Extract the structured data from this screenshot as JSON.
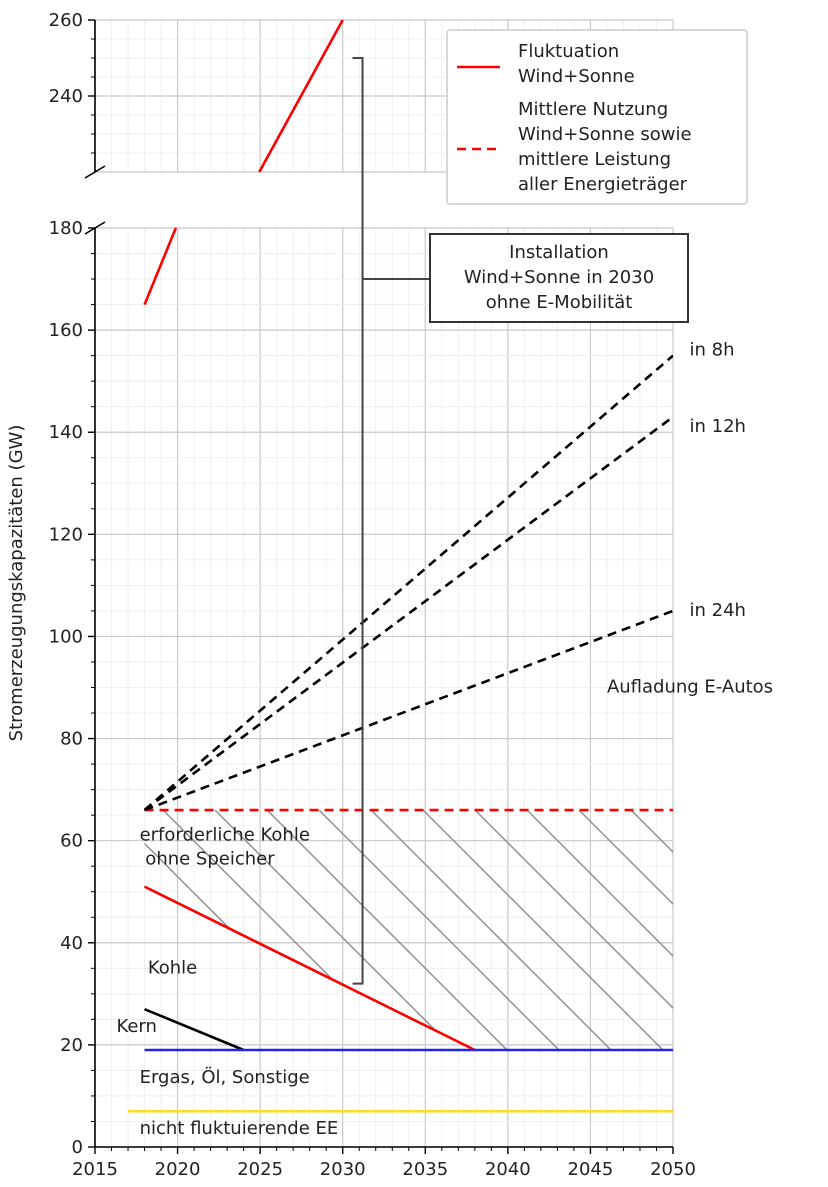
{
  "chart_data": {
    "type": "line",
    "ylabel": "Stromerzeugungskapazitäten (GW)",
    "xlim": [
      2015,
      2050
    ],
    "ylim_lower": [
      0,
      180
    ],
    "ylim_upper": [
      220,
      260
    ],
    "axis_break_between": [
      180,
      220
    ],
    "grid": true,
    "legend_position": "top-right",
    "x_ticks": [
      2015,
      2020,
      2025,
      2030,
      2035,
      2040,
      2045,
      2050
    ],
    "y_ticks": [
      0,
      20,
      40,
      60,
      80,
      100,
      120,
      140,
      160,
      180,
      240,
      260
    ],
    "legend": [
      {
        "label_lines": [
          "Fluktuation",
          "Wind+Sonne"
        ],
        "style": "solid",
        "color": "#ff0000"
      },
      {
        "label_lines": [
          "Mittlere Nutzung",
          "Wind+Sonne sowie",
          "mittlere Leistung",
          "aller Energieträger"
        ],
        "style": "dashed",
        "color": "#ff0000"
      }
    ],
    "series": [
      {
        "id": "fluktuation",
        "name": "Fluktuation Wind+Sonne",
        "color": "#ff0000",
        "style": "solid",
        "x": [
          2018,
          2030.0
        ],
        "y": [
          165,
          260
        ]
      },
      {
        "id": "mittlere-nutzung",
        "name": "Mittlere Nutzung Wind+Sonne sowie mittlere Leistung aller Energieträger",
        "color": "#ff0000",
        "style": "dashed",
        "x": [
          2018,
          2050
        ],
        "y": [
          66,
          66
        ]
      },
      {
        "id": "emob-8h",
        "color": "#000000",
        "style": "dashed",
        "x": [
          2018,
          2050
        ],
        "y": [
          66,
          155
        ]
      },
      {
        "id": "emob-12h",
        "color": "#000000",
        "style": "dashed",
        "x": [
          2018,
          2050
        ],
        "y": [
          66,
          143
        ]
      },
      {
        "id": "emob-24h",
        "color": "#000000",
        "style": "dashed",
        "x": [
          2018,
          2050
        ],
        "y": [
          66,
          105
        ]
      },
      {
        "id": "kohle",
        "color": "#ff0000",
        "style": "solid",
        "x": [
          2018,
          2038
        ],
        "y": [
          51,
          19
        ]
      },
      {
        "id": "kern",
        "color": "#000000",
        "style": "solid",
        "x": [
          2018,
          2024
        ],
        "y": [
          27,
          19
        ]
      },
      {
        "id": "ergas",
        "color": "#2222ee",
        "style": "solid",
        "x": [
          2018,
          2050
        ],
        "y": [
          19,
          19
        ]
      },
      {
        "id": "nicht-fluktuierend",
        "color": "#ffdd22",
        "style": "solid",
        "x": [
          2017,
          2050
        ],
        "y": [
          7,
          7
        ]
      }
    ],
    "annotations": [
      {
        "id": "in-8h",
        "lines": [
          "in 8h"
        ],
        "x": 2051,
        "y": 155
      },
      {
        "id": "in-12h",
        "lines": [
          "in 12h"
        ],
        "x": 2051,
        "y": 140
      },
      {
        "id": "in-24h",
        "lines": [
          "in 24h"
        ],
        "x": 2051,
        "y": 104
      },
      {
        "id": "aufladung",
        "lines": [
          "Aufladung E-Autos"
        ],
        "x": 2046,
        "y": 89
      },
      {
        "id": "erf-kohle",
        "lines": [
          "erforderliche Kohle",
          " ohne Speicher"
        ],
        "x": 2017.7,
        "y": 60
      },
      {
        "id": "kohle-label",
        "lines": [
          "Kohle"
        ],
        "x": 2018.2,
        "y": 34
      },
      {
        "id": "kern-label",
        "lines": [
          "Kern"
        ],
        "x": 2016.3,
        "y": 22.5
      },
      {
        "id": "ergas-label",
        "lines": [
          "Ergas, Öl, Sonstige"
        ],
        "x": 2017.7,
        "y": 12.5
      },
      {
        "id": "nicht-fluktuierend-label",
        "lines": [
          "nicht fluktuierende EE"
        ],
        "x": 2017.7,
        "y": 2.5
      }
    ],
    "callout": {
      "lines": [
        "Installation",
        "Wind+Sonne in 2030",
        "ohne E-Mobilität"
      ],
      "bracket_x": 2031.2,
      "bracket_y": [
        32,
        250
      ],
      "points_to_y": 170
    }
  }
}
